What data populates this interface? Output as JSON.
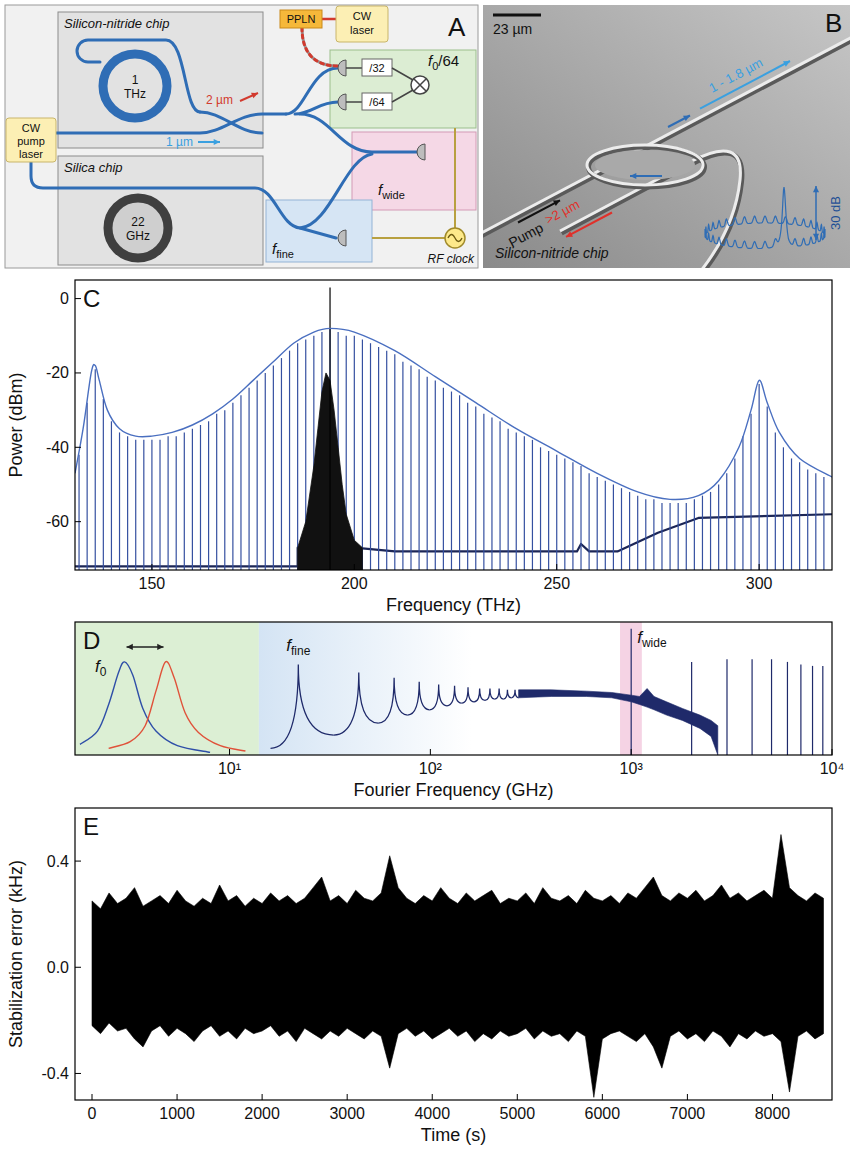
{
  "diagram": {
    "label": "A",
    "sin_chip": {
      "title": "Silicon-nitride chip",
      "ring": "1 THz",
      "long_wl": "2 µm",
      "short_wl": "1 µm"
    },
    "silica_chip": {
      "title": "Silica chip",
      "disk": "22 GHz"
    },
    "pump_laser": "CW pump laser",
    "ppln": "PPLN",
    "cw_laser": "CW laser",
    "f0_box": {
      "title": {
        "text": "f",
        "sub": "0",
        "suffix": "/64"
      },
      "div1": "/32",
      "div2": "/64"
    },
    "fwide": {
      "text": "f",
      "sub": "wide"
    },
    "ffine": {
      "text": "f",
      "sub": "fine"
    },
    "clock": "RF clock"
  },
  "sem_image": {
    "label": "B",
    "scale_bar": "23 µm",
    "pump": "Pump",
    "short_wl": "1 - 1.8 µm",
    "long_wl": ">2 µm",
    "inset_scale": "30 dB",
    "caption": "Silicon-nitride chip"
  },
  "chart_data": [
    {
      "type": "line",
      "title": "C",
      "x_label": "Frequency (THz)",
      "y_label": "Power (dBm)",
      "xlim": [
        131,
        318
      ],
      "ylim": [
        -73,
        5
      ],
      "xticks": [
        150,
        200,
        250,
        300
      ],
      "yticks": [
        0,
        -20,
        -40,
        -60
      ],
      "series": [
        {
          "type": "line",
          "color": "#1c2656",
          "x": [
            131,
            186,
            186,
            200,
            210,
            255,
            256,
            258,
            265,
            275,
            285,
            318
          ],
          "values": [
            -72,
            -72,
            -67,
            -67,
            -68,
            -68,
            -66,
            -68,
            -68,
            -63,
            -59,
            -58
          ]
        },
        {
          "type": "spikes",
          "color": "#3550a0",
          "x": [
            132,
            134,
            136,
            138,
            140,
            142,
            144,
            146,
            148,
            150,
            152,
            154,
            156,
            158,
            160,
            162,
            164,
            166,
            168,
            170,
            172,
            174,
            176,
            178,
            180,
            182,
            184,
            186,
            188,
            190,
            192,
            194,
            196,
            198,
            200,
            202,
            204,
            206,
            208,
            210,
            212,
            214,
            216,
            218,
            220,
            222,
            224,
            226,
            228,
            230,
            232,
            234,
            236,
            238,
            240,
            242,
            244,
            246,
            248,
            250,
            252,
            254,
            256,
            258,
            260,
            262,
            264,
            266,
            268,
            270,
            272,
            274,
            276,
            278,
            280,
            282,
            284,
            286,
            288,
            290,
            292,
            294,
            296,
            298,
            300,
            302,
            304,
            306,
            308,
            310,
            312,
            314,
            316
          ],
          "values": [
            -42,
            -28,
            -19,
            -27,
            -33,
            -36,
            -37,
            -38,
            -38,
            -38,
            -38,
            -37,
            -37,
            -36,
            -35,
            -34,
            -33,
            -31,
            -30,
            -28,
            -26,
            -24,
            -22,
            -20,
            -18,
            -16,
            -14,
            -12,
            -11,
            -10,
            -9,
            -8,
            -9,
            -10,
            -10,
            -11,
            -12,
            -13,
            -14,
            -15,
            -17,
            -18,
            -19,
            -21,
            -22,
            -24,
            -25,
            -26,
            -28,
            -29,
            -31,
            -32,
            -33,
            -35,
            -36,
            -37,
            -38,
            -40,
            -41,
            -42,
            -43,
            -44,
            -45,
            -47,
            -48,
            -49,
            -50,
            -51,
            -52,
            -53,
            -54,
            -54,
            -55,
            -55,
            -55,
            -55,
            -54,
            -53,
            -52,
            -50,
            -47,
            -43,
            -37,
            -31,
            -23,
            -29,
            -36,
            -40,
            -43,
            -44,
            -46,
            -47,
            -48
          ]
        },
        {
          "type": "area",
          "color": "#111111",
          "x": [
            186,
            188,
            190,
            191,
            192,
            193,
            194,
            195,
            196,
            197,
            198,
            200,
            202
          ],
          "values": [
            -67,
            -60,
            -45,
            -35,
            -25,
            -20,
            -22,
            -30,
            -40,
            -50,
            -58,
            -65,
            -67
          ]
        },
        {
          "type": "spikes",
          "color": "#000000",
          "x": [
            194
          ],
          "values": [
            3
          ]
        },
        {
          "type": "line",
          "color": "#4a6fc0",
          "line_style": "smooth",
          "x": [
            131,
            133,
            135,
            136,
            137,
            139,
            142,
            146,
            150,
            155,
            160,
            165,
            170,
            175,
            180,
            185,
            190,
            194,
            200,
            210,
            220,
            230,
            240,
            250,
            260,
            270,
            278,
            285,
            290,
            295,
            298,
            300,
            302,
            305,
            310,
            318
          ],
          "values": [
            -47,
            -35,
            -20,
            -18,
            -22,
            -30,
            -35,
            -37,
            -37,
            -36,
            -34,
            -31,
            -27,
            -22,
            -17,
            -12,
            -9,
            -8,
            -9,
            -14,
            -21,
            -28,
            -35,
            -41,
            -47,
            -52,
            -54,
            -53,
            -49,
            -40,
            -30,
            -22,
            -28,
            -36,
            -43,
            -48
          ]
        }
      ]
    },
    {
      "type": "line",
      "title": "D",
      "x_label": "Fourier Frequency (GHz)",
      "log": "x",
      "tick_labels": "x",
      "xlim": [
        1.7,
        10000
      ],
      "ylim": [
        0,
        100
      ],
      "xticks": [
        {
          "value": 10,
          "label": "10¹"
        },
        {
          "value": 100,
          "label": "10²"
        },
        {
          "value": 1000,
          "label": "10³"
        },
        {
          "value": 10000,
          "label": "10⁴"
        }
      ],
      "regions": [
        {
          "x": [
            1.7,
            14
          ],
          "color": "#dcefd4"
        },
        {
          "x": [
            14,
            160
          ],
          "color": "#d4e4f4"
        },
        {
          "x": [
            880,
            1130
          ],
          "color": "#f5d3e4"
        }
      ],
      "annotations": [
        {
          "text": "f",
          "sub": "0"
        },
        {
          "text": "f",
          "sub": "fine"
        },
        {
          "text": "f",
          "sub": "wide"
        }
      ],
      "series": [
        {
          "type": "line",
          "color": "#2f4fa8",
          "line_style": "smooth",
          "x": [
            1.8,
            2.2,
            2.5,
            2.8,
            3.0,
            3.3,
            3.7,
            4.3,
            5.5,
            8
          ],
          "values": [
            8,
            18,
            38,
            62,
            70,
            60,
            35,
            18,
            7,
            2
          ]
        },
        {
          "type": "line",
          "color": "#e0523a",
          "line_style": "smooth",
          "x": [
            2.5,
            3.2,
            3.8,
            4.3,
            4.8,
            5.3,
            6.0,
            7.0,
            9.0,
            12
          ],
          "values": [
            5,
            10,
            22,
            48,
            70,
            58,
            32,
            17,
            7,
            3
          ]
        },
        {
          "type": "peaks",
          "color": "#1f2a6a",
          "x": [
            22,
            44,
            66,
            88,
            110,
            132,
            154,
            176,
            198,
            220,
            242,
            264
          ],
          "values": [
            68,
            62,
            58,
            55,
            53,
            52,
            51,
            50,
            50,
            50,
            49,
            49
          ]
        },
        {
          "type": "valleys",
          "x": [
            16,
            33,
            55,
            77,
            99,
            121,
            143,
            165,
            187,
            209,
            231,
            253,
            275
          ],
          "values": [
            5,
            15,
            24,
            30,
            34,
            37,
            39,
            40,
            41,
            42,
            42,
            43,
            43
          ]
        },
        {
          "type": "band",
          "color": "#1f2a6a",
          "x": [
            275,
            400,
            600,
            800,
            1000,
            1100,
            1200,
            1300,
            1500,
            1800,
            2200,
            2500,
            2700
          ],
          "values": [
            49,
            49,
            48,
            47,
            45,
            44,
            50,
            44,
            40,
            35,
            30,
            26,
            22
          ],
          "lower": [
            43,
            44,
            44,
            43,
            40,
            38,
            36,
            34,
            30,
            26,
            20,
            14,
            0
          ]
        },
        {
          "type": "spikes",
          "color": "#1f2a6a",
          "x": [
            1000,
            2000,
            3000,
            4000,
            5000,
            6000,
            7000,
            8000,
            9000
          ],
          "values": [
            95,
            70,
            72,
            72,
            72,
            70,
            68,
            67,
            67
          ]
        }
      ]
    },
    {
      "type": "area",
      "title": "E",
      "x_label": "Time (s)",
      "y_label": "Stabilization error (kHz)",
      "xlim": [
        -200,
        8700
      ],
      "ylim": [
        -0.5,
        0.6
      ],
      "xticks": [
        0,
        1000,
        2000,
        3000,
        4000,
        5000,
        6000,
        7000,
        8000
      ],
      "yticks": [
        0.4,
        {
          "value": 0,
          "label": "0.0"
        },
        -0.4
      ],
      "series": [
        {
          "type": "band",
          "color": "#000000",
          "x": [
            0,
            100,
            200,
            300,
            400,
            500,
            600,
            700,
            800,
            900,
            1000,
            1100,
            1200,
            1300,
            1400,
            1500,
            1600,
            1700,
            1800,
            1900,
            2000,
            2100,
            2200,
            2300,
            2400,
            2500,
            2600,
            2700,
            2800,
            2900,
            3000,
            3100,
            3200,
            3300,
            3400,
            3500,
            3600,
            3700,
            3800,
            3900,
            4000,
            4100,
            4200,
            4300,
            4400,
            4500,
            4600,
            4700,
            4800,
            4900,
            5000,
            5100,
            5200,
            5300,
            5400,
            5500,
            5600,
            5700,
            5800,
            5900,
            6000,
            6100,
            6200,
            6300,
            6400,
            6500,
            6600,
            6700,
            6800,
            6900,
            7000,
            7100,
            7200,
            7300,
            7400,
            7500,
            7600,
            7700,
            7800,
            7900,
            8000,
            8100,
            8200,
            8300,
            8400,
            8500,
            8600
          ],
          "values": [
            0.25,
            0.22,
            0.28,
            0.24,
            0.26,
            0.3,
            0.23,
            0.25,
            0.27,
            0.24,
            0.29,
            0.25,
            0.23,
            0.26,
            0.24,
            0.31,
            0.25,
            0.27,
            0.23,
            0.26,
            0.24,
            0.28,
            0.25,
            0.27,
            0.24,
            0.26,
            0.3,
            0.34,
            0.25,
            0.27,
            0.24,
            0.29,
            0.26,
            0.25,
            0.28,
            0.42,
            0.3,
            0.26,
            0.24,
            0.27,
            0.25,
            0.3,
            0.26,
            0.24,
            0.28,
            0.25,
            0.27,
            0.29,
            0.24,
            0.26,
            0.25,
            0.28,
            0.24,
            0.3,
            0.26,
            0.25,
            0.27,
            0.24,
            0.29,
            0.26,
            0.25,
            0.27,
            0.24,
            0.28,
            0.26,
            0.3,
            0.34,
            0.27,
            0.25,
            0.28,
            0.26,
            0.29,
            0.25,
            0.27,
            0.31,
            0.26,
            0.28,
            0.25,
            0.27,
            0.29,
            0.26,
            0.5,
            0.3,
            0.27,
            0.25,
            0.28,
            0.26
          ],
          "lower": [
            -0.22,
            -0.25,
            -0.21,
            -0.24,
            -0.23,
            -0.27,
            -0.3,
            -0.24,
            -0.22,
            -0.26,
            -0.23,
            -0.25,
            -0.28,
            -0.24,
            -0.22,
            -0.26,
            -0.24,
            -0.27,
            -0.23,
            -0.25,
            -0.24,
            -0.22,
            -0.26,
            -0.24,
            -0.28,
            -0.23,
            -0.25,
            -0.27,
            -0.24,
            -0.26,
            -0.23,
            -0.25,
            -0.27,
            -0.24,
            -0.26,
            -0.38,
            -0.25,
            -0.23,
            -0.26,
            -0.24,
            -0.27,
            -0.25,
            -0.23,
            -0.26,
            -0.24,
            -0.28,
            -0.25,
            -0.27,
            -0.24,
            -0.26,
            -0.25,
            -0.23,
            -0.27,
            -0.24,
            -0.26,
            -0.25,
            -0.28,
            -0.24,
            -0.26,
            -0.49,
            -0.27,
            -0.25,
            -0.24,
            -0.26,
            -0.28,
            -0.25,
            -0.3,
            -0.38,
            -0.26,
            -0.24,
            -0.27,
            -0.25,
            -0.28,
            -0.24,
            -0.26,
            -0.3,
            -0.25,
            -0.27,
            -0.24,
            -0.26,
            -0.25,
            -0.28,
            -0.47,
            -0.26,
            -0.24,
            -0.27,
            -0.25
          ]
        }
      ]
    }
  ]
}
